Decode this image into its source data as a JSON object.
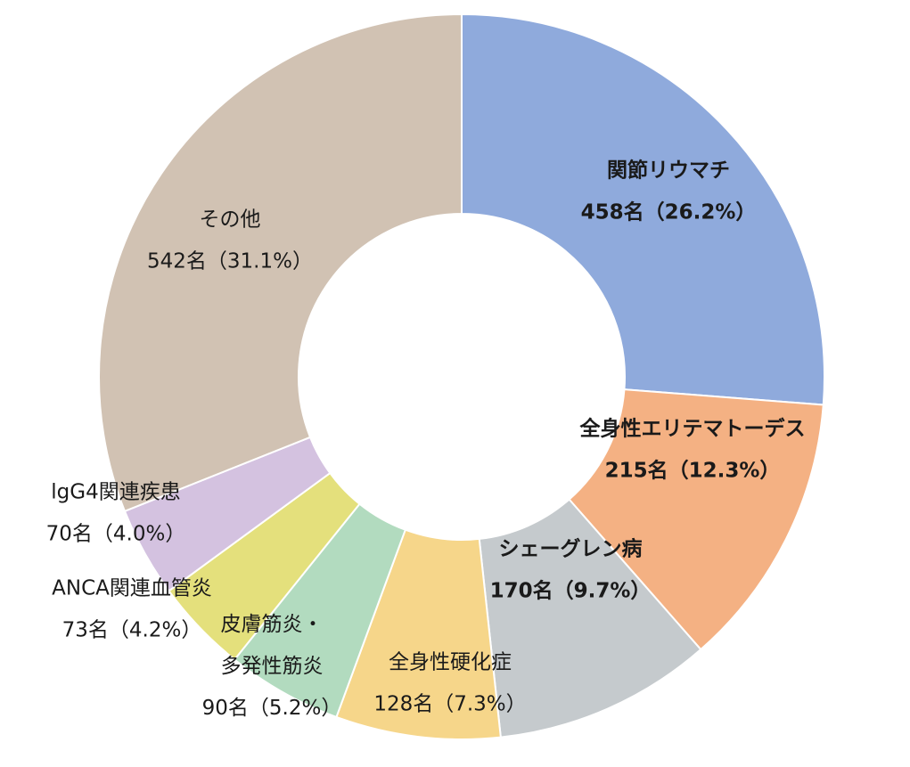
{
  "chart_data": {
    "type": "pie",
    "variant": "donut",
    "title": "",
    "start_angle_deg": 0,
    "direction": "clockwise",
    "slices": [
      {
        "label": "関節リウマチ",
        "count": 458,
        "value_label": "458名（26.2%）",
        "percent": 26.2,
        "color": "#8FAADC",
        "bold": true
      },
      {
        "label": "全身性エリテマトーデス",
        "count": 215,
        "value_label": "215名（12.3%）",
        "percent": 12.3,
        "color": "#F4B183",
        "bold": true
      },
      {
        "label": "シェーグレン病",
        "count": 170,
        "value_label": "170名（9.7%）",
        "percent": 9.7,
        "color": "#C5CACD",
        "bold": true
      },
      {
        "label": "全身性硬化症",
        "count": 128,
        "value_label": "128名（7.3%）",
        "percent": 7.3,
        "color": "#F6D68A",
        "bold": false
      },
      {
        "label_lines": [
          "皮膚筋炎・",
          "多発性筋炎"
        ],
        "count": 90,
        "value_label": "90名（5.2%）",
        "percent": 5.2,
        "color": "#B2DBBF",
        "bold": false
      },
      {
        "label": "ANCA関連血管炎",
        "count": 73,
        "value_label": "73名（4.2%）",
        "percent": 4.2,
        "color": "#E4E07C",
        "bold": false
      },
      {
        "label": "lgG4関連疾患",
        "count": 70,
        "value_label": "70名（4.0%）",
        "percent": 4.0,
        "color": "#D4C2E0",
        "bold": false
      },
      {
        "label": "その他",
        "count": 542,
        "value_label": "542名（31.1%）",
        "percent": 31.1,
        "color": "#D1C2B3",
        "bold": false
      }
    ]
  }
}
